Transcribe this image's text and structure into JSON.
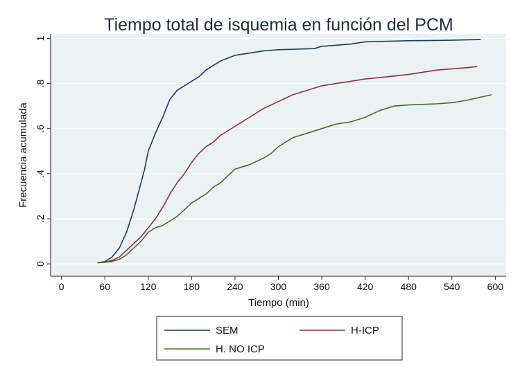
{
  "chart_data": {
    "type": "line",
    "title": "Tiempo total de isquemia en función del PCM",
    "xlabel": "Tiempo (min)",
    "ylabel": "Frecuencia acumulada",
    "xlim": [
      -15,
      615
    ],
    "ylim": [
      -0.055,
      1.02
    ],
    "xticks": [
      0,
      60,
      120,
      180,
      240,
      300,
      360,
      420,
      480,
      540,
      600
    ],
    "xtick_labels": [
      "0",
      "60",
      "120",
      "180",
      "240",
      "300",
      "360",
      "420",
      "480",
      "540",
      "600"
    ],
    "yticks": [
      0,
      0.2,
      0.4,
      0.6,
      0.8,
      1
    ],
    "ytick_labels": [
      "0",
      ".2",
      ".4",
      ".6",
      ".8",
      "1"
    ],
    "grid": "horizontal",
    "legend_position": "bottom",
    "background": "#eaf2f3",
    "series": [
      {
        "name": "SEM",
        "color": "#1f3a5a",
        "x": [
          50,
          60,
          70,
          80,
          90,
          100,
          110,
          115,
          120,
          125,
          130,
          140,
          150,
          160,
          170,
          180,
          190,
          200,
          210,
          220,
          240,
          260,
          280,
          300,
          350,
          360,
          400,
          420,
          480,
          540,
          580
        ],
        "y": [
          0.005,
          0.01,
          0.03,
          0.07,
          0.14,
          0.24,
          0.36,
          0.42,
          0.5,
          0.54,
          0.58,
          0.65,
          0.73,
          0.77,
          0.79,
          0.81,
          0.83,
          0.86,
          0.88,
          0.9,
          0.925,
          0.935,
          0.945,
          0.95,
          0.955,
          0.965,
          0.975,
          0.985,
          0.99,
          0.992,
          0.995
        ]
      },
      {
        "name": "H-ICP",
        "color": "#8c2f3a",
        "x": [
          50,
          60,
          70,
          80,
          90,
          100,
          110,
          120,
          130,
          140,
          150,
          160,
          170,
          180,
          190,
          200,
          210,
          220,
          240,
          260,
          280,
          300,
          320,
          340,
          360,
          380,
          400,
          420,
          450,
          480,
          520,
          560,
          575
        ],
        "y": [
          0.005,
          0.007,
          0.015,
          0.03,
          0.06,
          0.09,
          0.12,
          0.16,
          0.2,
          0.25,
          0.31,
          0.36,
          0.4,
          0.45,
          0.49,
          0.52,
          0.54,
          0.57,
          0.61,
          0.65,
          0.69,
          0.72,
          0.75,
          0.77,
          0.79,
          0.8,
          0.81,
          0.82,
          0.83,
          0.84,
          0.86,
          0.87,
          0.875
        ]
      },
      {
        "name": "H. NO ICP",
        "color": "#4b6b2c",
        "x": [
          50,
          60,
          70,
          80,
          90,
          100,
          110,
          120,
          130,
          140,
          150,
          160,
          170,
          180,
          190,
          200,
          210,
          220,
          230,
          240,
          260,
          280,
          290,
          300,
          320,
          340,
          360,
          380,
          400,
          420,
          440,
          460,
          480,
          520,
          540,
          560,
          580,
          595
        ],
        "y": [
          0.005,
          0.007,
          0.01,
          0.02,
          0.04,
          0.07,
          0.1,
          0.14,
          0.16,
          0.17,
          0.19,
          0.21,
          0.24,
          0.27,
          0.29,
          0.31,
          0.34,
          0.36,
          0.39,
          0.42,
          0.44,
          0.47,
          0.49,
          0.52,
          0.56,
          0.58,
          0.6,
          0.62,
          0.63,
          0.65,
          0.68,
          0.7,
          0.705,
          0.71,
          0.715,
          0.725,
          0.74,
          0.75
        ]
      }
    ]
  }
}
